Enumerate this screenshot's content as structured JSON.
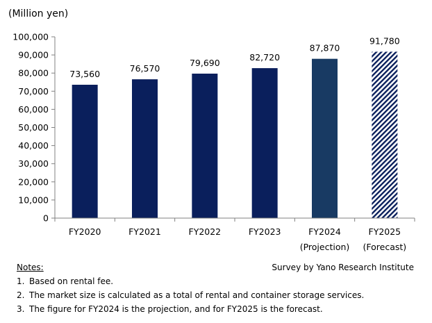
{
  "chart_data": {
    "type": "bar",
    "unit_label": "(Million yen)",
    "categories": [
      "FY2020",
      "FY2021",
      "FY2022",
      "FY2023",
      "FY2024",
      "FY2025"
    ],
    "category_sublabels": [
      "",
      "",
      "",
      "",
      "(Projection)",
      "(Forecast)"
    ],
    "values": [
      73560,
      76570,
      79690,
      82720,
      87870,
      91780
    ],
    "value_labels": [
      "73,560",
      "76,570",
      "79,690",
      "82,720",
      "87,870",
      "91,780"
    ],
    "bar_styles": [
      "actual",
      "actual",
      "actual",
      "actual",
      "projection",
      "forecast"
    ],
    "ylim": [
      0,
      100000
    ],
    "yticks": [
      "0",
      "10,000",
      "20,000",
      "30,000",
      "40,000",
      "50,000",
      "60,000",
      "70,000",
      "80,000",
      "90,000",
      "100,000"
    ],
    "colors": {
      "actual": "#0a1f5c",
      "projection": "#183a63",
      "forecast_hatch": "#0a1f5c"
    },
    "grid": false,
    "legend": "none"
  },
  "source": "Survey by Yano Research Institute",
  "notes": {
    "title": "Notes:",
    "items": [
      {
        "num": "1.",
        "text": "Based on rental fee."
      },
      {
        "num": "2.",
        "text": "The market size is calculated as a total of rental and container storage services."
      },
      {
        "num": "3.",
        "text": "The figure for FY2024 is the projection, and for FY2025 is the forecast."
      }
    ]
  }
}
